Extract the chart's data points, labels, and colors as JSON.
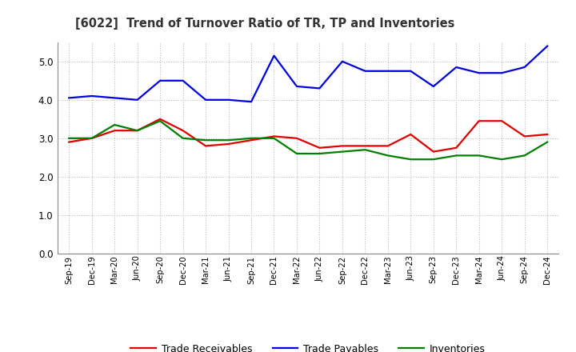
{
  "title": "[6022]  Trend of Turnover Ratio of TR, TP and Inventories",
  "labels": [
    "Sep-19",
    "Dec-19",
    "Mar-20",
    "Jun-20",
    "Sep-20",
    "Dec-20",
    "Mar-21",
    "Jun-21",
    "Sep-21",
    "Dec-21",
    "Mar-22",
    "Jun-22",
    "Sep-22",
    "Dec-22",
    "Mar-23",
    "Jun-23",
    "Sep-23",
    "Dec-23",
    "Mar-24",
    "Jun-24",
    "Sep-24",
    "Dec-24"
  ],
  "trade_receivables": [
    2.9,
    3.0,
    3.2,
    3.2,
    3.5,
    3.2,
    2.8,
    2.85,
    2.95,
    3.05,
    3.0,
    2.75,
    2.8,
    2.8,
    2.8,
    3.1,
    2.65,
    2.75,
    3.45,
    3.45,
    3.05,
    3.1
  ],
  "trade_payables": [
    4.05,
    4.1,
    4.05,
    4.0,
    4.5,
    4.5,
    4.0,
    4.0,
    3.95,
    5.15,
    4.35,
    4.3,
    5.0,
    4.75,
    4.75,
    4.75,
    4.35,
    4.85,
    4.7,
    4.7,
    4.85,
    5.4
  ],
  "inventories": [
    3.0,
    3.0,
    3.35,
    3.2,
    3.45,
    3.0,
    2.95,
    2.95,
    3.0,
    3.0,
    2.6,
    2.6,
    2.65,
    2.7,
    2.55,
    2.45,
    2.45,
    2.55,
    2.55,
    2.45,
    2.55,
    2.9
  ],
  "tr_color": "#e00000",
  "tp_color": "#0000e0",
  "inv_color": "#008000",
  "ylim": [
    0.0,
    5.5
  ],
  "yticks": [
    0.0,
    1.0,
    2.0,
    3.0,
    4.0,
    5.0
  ],
  "bg_color": "#ffffff",
  "plot_bg_color": "#ffffff",
  "grid_color": "#bbbbbb",
  "legend_labels": [
    "Trade Receivables",
    "Trade Payables",
    "Inventories"
  ]
}
